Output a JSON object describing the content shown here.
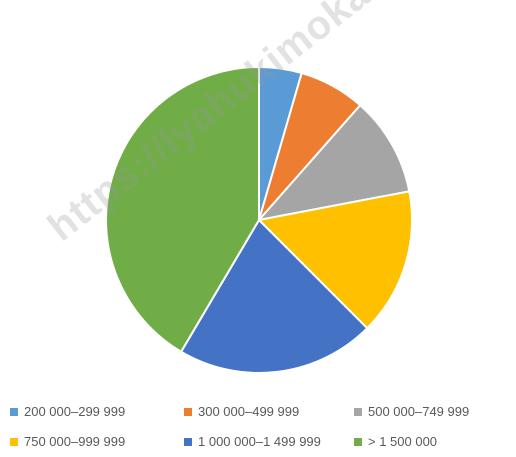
{
  "chart_data": {
    "type": "pie",
    "title": "",
    "categories": [
      "200 000–299 999",
      "300 000–499 999",
      "500 000–749 999",
      "750 000–999 999",
      "1 000 000–1 499 999",
      "> 1 500 000"
    ],
    "values": [
      4.5,
      7,
      10.5,
      15.5,
      21,
      41.5
    ],
    "colors": [
      "#5b9bd5",
      "#ed7d31",
      "#a5a5a5",
      "#ffc000",
      "#4472c4",
      "#70ad47"
    ],
    "legend_position": "bottom"
  },
  "watermark": "https://lyahukimokab.bps.go.id"
}
